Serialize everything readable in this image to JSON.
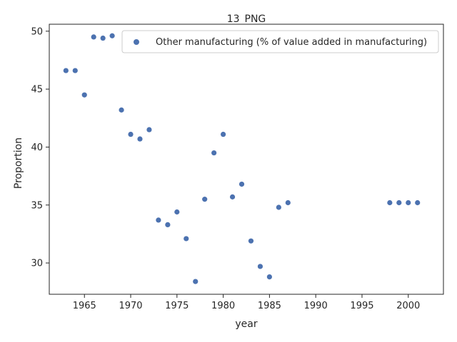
{
  "chart_data": {
    "type": "scatter",
    "title": "13_PNG",
    "xlabel": "year",
    "ylabel": "Proportion",
    "xlim": [
      1961.2,
      2003.8
    ],
    "ylim": [
      27.3,
      50.6
    ],
    "xticks": [
      1965,
      1970,
      1975,
      1980,
      1985,
      1990,
      1995,
      2000
    ],
    "yticks": [
      30,
      35,
      40,
      45,
      50
    ],
    "grid": false,
    "legend_position": "top-right",
    "series": [
      {
        "name": "Other manufacturing (% of value added in manufacturing)",
        "color": "#4c72b0",
        "x": [
          1963,
          1964,
          1965,
          1966,
          1967,
          1968,
          1969,
          1970,
          1971,
          1972,
          1973,
          1974,
          1975,
          1976,
          1977,
          1978,
          1979,
          1980,
          1981,
          1982,
          1983,
          1984,
          1985,
          1986,
          1987,
          1998,
          1999,
          2000,
          2001
        ],
        "y": [
          46.6,
          46.6,
          44.5,
          49.5,
          49.4,
          49.6,
          43.2,
          41.1,
          40.7,
          41.5,
          33.7,
          33.3,
          34.4,
          32.1,
          28.4,
          35.5,
          39.5,
          41.1,
          35.7,
          36.8,
          31.9,
          29.7,
          28.8,
          34.8,
          35.2,
          35.2,
          35.2,
          35.2,
          35.2
        ]
      }
    ]
  }
}
